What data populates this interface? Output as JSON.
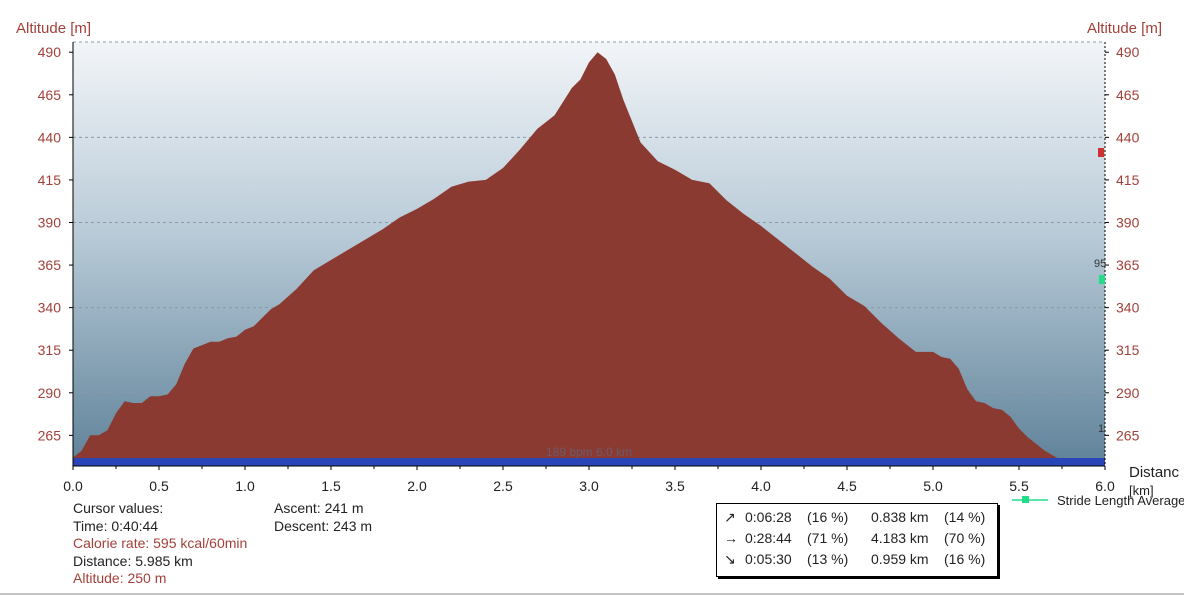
{
  "chart_data": {
    "type": "area",
    "ylabel_left": "Altitude [m]",
    "ylabel_right": "Altitude [m]",
    "xlabel": "Distanc",
    "xunit": "[km]",
    "xlim": [
      0,
      6
    ],
    "ylim": [
      247,
      496
    ],
    "x_ticks": [
      "0.0",
      "0.5",
      "1.0",
      "1.5",
      "2.0",
      "2.5",
      "3.0",
      "3.5",
      "4.0",
      "4.5",
      "5.0",
      "5.5",
      "6.0"
    ],
    "y_ticks": [
      "490",
      "465",
      "440",
      "415",
      "390",
      "365",
      "340",
      "315",
      "290",
      "265"
    ],
    "fill_color": "#8b3a32",
    "band_color": "#2a45b8",
    "band_label": "189 bpm 6.0 km",
    "legend": {
      "label": "Stride Length Average",
      "color": "#22dd88"
    },
    "right_edge_markers": {
      "value_label": "95",
      "small_label": "1"
    },
    "series": [
      {
        "x": [
          0.0,
          0.05,
          0.1,
          0.15,
          0.2,
          0.25,
          0.3,
          0.35,
          0.4,
          0.45,
          0.5,
          0.55,
          0.6,
          0.65,
          0.7,
          0.75,
          0.8,
          0.85,
          0.9,
          0.95,
          1.0,
          1.05,
          1.1,
          1.15,
          1.2,
          1.3,
          1.4,
          1.5,
          1.6,
          1.7,
          1.8,
          1.9,
          2.0,
          2.1,
          2.2,
          2.3,
          2.4,
          2.5,
          2.6,
          2.7,
          2.8,
          2.9,
          2.95,
          3.0,
          3.05,
          3.1,
          3.15,
          3.2,
          3.3,
          3.4,
          3.5,
          3.6,
          3.7,
          3.8,
          3.9,
          4.0,
          4.1,
          4.2,
          4.3,
          4.4,
          4.5,
          4.6,
          4.7,
          4.8,
          4.9,
          5.0,
          5.05,
          5.1,
          5.15,
          5.2,
          5.25,
          5.3,
          5.35,
          5.4,
          5.45,
          5.5,
          5.55,
          5.6,
          5.65,
          5.7,
          5.75,
          5.8,
          5.85,
          5.9,
          5.95,
          6.0
        ],
        "y": [
          252,
          256,
          265,
          265,
          268,
          278,
          285,
          284,
          284,
          288,
          288,
          289,
          295,
          307,
          316,
          318,
          320,
          320,
          322,
          323,
          327,
          329,
          334,
          339,
          342,
          351,
          362,
          368,
          374,
          380,
          386,
          393,
          398,
          404,
          411,
          414,
          415,
          422,
          433,
          445,
          453,
          469,
          474,
          484,
          490,
          486,
          477,
          462,
          437,
          426,
          421,
          415,
          413,
          403,
          395,
          388,
          380,
          372,
          364,
          357,
          347,
          341,
          331,
          322,
          314,
          314,
          311,
          310,
          304,
          292,
          285,
          284,
          281,
          280,
          276,
          269,
          264,
          260,
          256,
          253,
          250,
          250,
          250,
          250,
          250,
          250
        ]
      }
    ]
  },
  "cursor": {
    "heading": "Cursor values:",
    "time": "Time: 0:40:44",
    "calorie": "Calorie rate: 595 kcal/60min",
    "distance": "Distance: 5.985 km",
    "altitude": "Altitude: 250 m"
  },
  "totals": {
    "ascent": "Ascent: 241 m",
    "descent": "Descent: 243 m"
  },
  "stats": [
    {
      "icon": "↗",
      "time": "0:06:28",
      "time_pct": "(16 %)",
      "dist": "0.838 km",
      "dist_pct": "(14 %)"
    },
    {
      "icon": "→",
      "time": "0:28:44",
      "time_pct": "(71 %)",
      "dist": "4.183 km",
      "dist_pct": "(70 %)"
    },
    {
      "icon": "↘",
      "time": "0:05:30",
      "time_pct": "(13 %)",
      "dist": "0.959 km",
      "dist_pct": "(16 %)"
    }
  ]
}
